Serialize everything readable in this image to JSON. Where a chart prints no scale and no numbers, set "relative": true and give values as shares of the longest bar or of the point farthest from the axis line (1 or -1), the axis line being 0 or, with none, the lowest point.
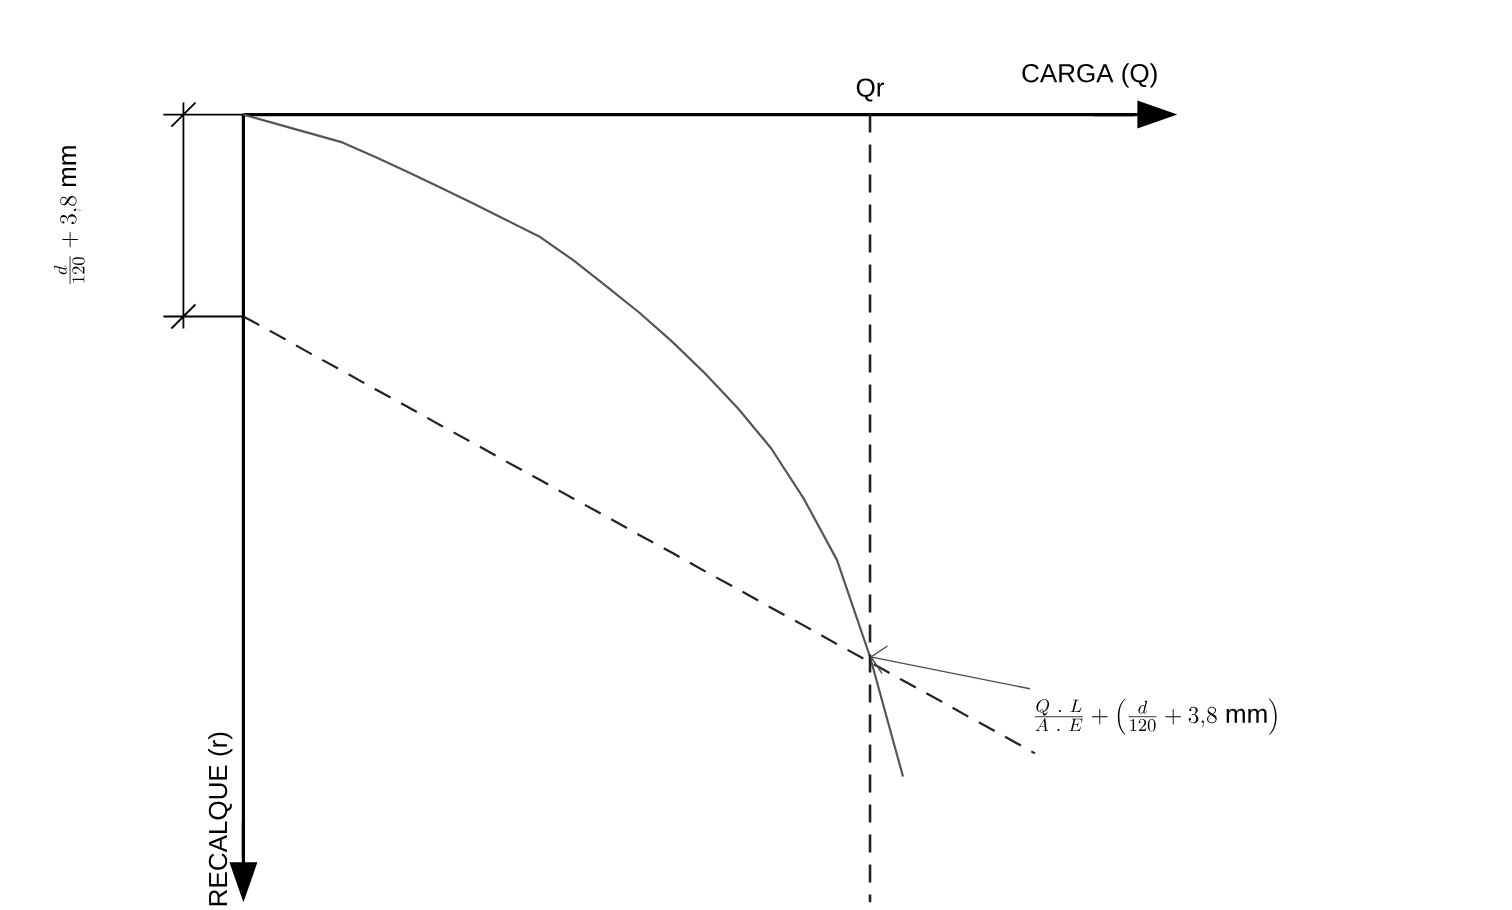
{
  "chart_data": {
    "type": "line",
    "relative": true,
    "xlabel": "CARGA (Q)",
    "ylabel": "RECALQUE (r)",
    "marker": "none",
    "categories": [
      null,
      null,
      null,
      null,
      null,
      null,
      null,
      null,
      null,
      null,
      null,
      null,
      null,
      null,
      null,
      null,
      null,
      null,
      null,
      null,
      null,
      null,
      null,
      null,
      null
    ],
    "series": [
      {
        "color": "#555555",
        "line_style": "solid",
        "values": [
          0,
          -0.014,
          -0.028,
          -0.042,
          -0.064,
          -0.087,
          -0.111,
          -0.135,
          -0.16,
          -0.185,
          -0.22,
          -0.259,
          -0.299,
          -0.343,
          -0.391,
          -0.444,
          -0.504,
          -0.581,
          -0.673,
          -0.819,
          -1,
          null,
          null,
          null,
          null
        ]
      },
      {
        "color": "#222222",
        "line_style": "dashed",
        "values": [
          -0.305,
          -0.332,
          -0.36,
          -0.387,
          -0.415,
          -0.442,
          -0.47,
          -0.497,
          -0.525,
          -0.552,
          -0.58,
          -0.607,
          -0.635,
          -0.662,
          -0.69,
          -0.717,
          -0.745,
          -0.772,
          -0.8,
          -0.827,
          -0.855,
          -0.882,
          -0.91,
          -0.937,
          -0.965
        ]
      }
    ],
    "annotations": [
      "Qr",
      "\\frac{Q\\ .\\ L}{A\\ .\\ E}+\\left(\\frac{d}{120}+3{,}8\\ \\mathrm{mm}\\right)",
      "\\frac{d}{120}+3{,}8\\ \\mathrm{mm}"
    ]
  }
}
